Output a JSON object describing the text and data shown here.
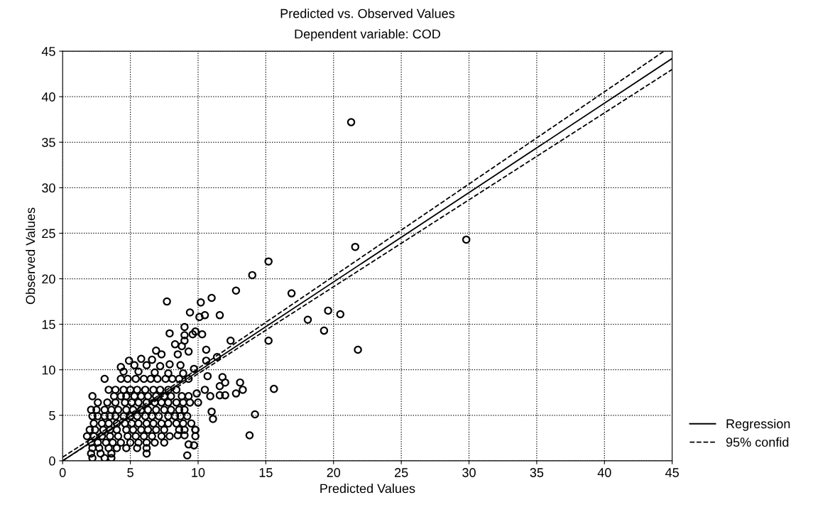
{
  "chart_data": {
    "type": "scatter",
    "title": "Predicted vs. Observed Values",
    "subtitle": "Dependent variable: COD",
    "xlabel": "Predicted Values",
    "ylabel": "Observed Values",
    "xlim": [
      0,
      45
    ],
    "ylim": [
      0,
      45
    ],
    "xticks": [
      0,
      5,
      10,
      15,
      20,
      25,
      30,
      35,
      40,
      45
    ],
    "yticks": [
      0,
      5,
      10,
      15,
      20,
      25,
      30,
      35,
      40,
      45
    ],
    "grid": true,
    "legend": "bottom right",
    "series": [
      {
        "color": "#000000",
        "marker": "circle",
        "x": [
          3.1,
          4.3,
          4.8,
          5.4,
          6.0,
          6.5,
          7.0,
          7.6,
          8.1,
          8.6,
          9.3,
          3.4,
          3.9,
          4.5,
          5.0,
          5.5,
          6.1,
          6.7,
          7.2,
          7.8,
          8.4,
          2.2,
          3.8,
          4.3,
          4.7,
          5.3,
          5.8,
          6.3,
          6.9,
          7.5,
          8.0,
          8.8,
          9.3,
          9.9,
          2.6,
          3.3,
          3.9,
          4.6,
          5.1,
          5.6,
          6.2,
          6.8,
          7.3,
          7.8,
          8.4,
          8.9,
          9.4,
          10.0,
          2.1,
          2.5,
          3.1,
          3.6,
          4.1,
          4.7,
          5.2,
          5.8,
          6.3,
          6.9,
          7.5,
          8.0,
          8.6,
          9.0,
          2.2,
          2.6,
          3.1,
          3.5,
          3.9,
          4.5,
          5.0,
          5.5,
          6.1,
          6.6,
          7.1,
          7.8,
          8.3,
          8.7,
          9.2,
          2.3,
          2.9,
          3.4,
          4.0,
          4.6,
          5.1,
          5.6,
          6.2,
          6.7,
          7.3,
          7.8,
          8.4,
          8.9,
          9.5,
          2.0,
          2.4,
          3.0,
          3.5,
          4.0,
          4.7,
          5.2,
          5.8,
          6.3,
          6.9,
          7.5,
          8.6,
          9.0,
          9.8,
          1.8,
          2.3,
          2.9,
          3.5,
          4.1,
          4.8,
          5.4,
          6.0,
          6.6,
          7.3,
          7.9,
          8.5,
          9.0,
          9.8,
          2.1,
          2.6,
          3.2,
          3.7,
          4.3,
          5.0,
          5.6,
          6.2,
          6.8,
          7.5,
          9.3,
          9.7,
          2.2,
          2.7,
          3.4,
          4.0,
          4.7,
          5.5,
          6.2,
          2.1,
          2.8,
          3.6,
          6.2,
          9.2,
          2.2,
          3.1,
          3.6,
          7.7,
          9.4,
          9.0,
          9.0,
          9.0,
          7.9,
          9.6,
          8.3,
          8.8,
          6.9,
          7.3,
          8.5,
          9.3,
          5.8,
          6.6,
          4.9,
          4.3,
          5.3,
          6.2,
          7.2,
          7.9,
          8.7,
          9.7,
          4.5,
          5.6,
          6.8,
          7.8,
          8.9,
          15.2,
          14.0,
          12.8,
          16.9,
          11.0,
          10.2,
          10.5,
          10.1,
          11.6,
          19.6,
          20.5,
          18.1,
          19.3,
          9.8,
          10.3,
          15.2,
          12.4,
          10.6,
          21.8,
          10.6,
          11.4,
          10.7,
          11.8,
          12.0,
          11.6,
          13.1,
          13.3,
          12.8,
          10.5,
          10.9,
          11.6,
          12.0,
          15.6,
          11.0,
          11.1,
          14.2,
          13.8,
          9.8,
          21.3,
          21.6,
          29.8
        ],
        "values": [
          9.0,
          9.0,
          9.0,
          9.0,
          9.0,
          9.0,
          9.0,
          9.0,
          9.0,
          9.0,
          9.0,
          7.8,
          7.8,
          7.8,
          7.8,
          7.8,
          7.8,
          7.8,
          7.8,
          7.8,
          7.8,
          7.1,
          7.1,
          7.1,
          7.1,
          7.1,
          7.1,
          7.1,
          7.1,
          7.1,
          7.1,
          7.1,
          7.1,
          7.4,
          6.4,
          6.4,
          6.4,
          6.4,
          6.4,
          6.4,
          6.4,
          6.4,
          6.4,
          6.4,
          6.4,
          6.4,
          6.4,
          6.4,
          5.6,
          5.6,
          5.6,
          5.6,
          5.6,
          5.6,
          5.6,
          5.6,
          5.6,
          5.6,
          5.6,
          5.6,
          5.6,
          5.6,
          4.9,
          4.9,
          4.9,
          4.9,
          4.9,
          4.9,
          4.9,
          4.9,
          4.9,
          4.9,
          4.9,
          4.9,
          4.9,
          4.9,
          4.9,
          4.1,
          4.1,
          4.1,
          4.1,
          4.1,
          4.1,
          4.1,
          4.1,
          4.1,
          4.1,
          4.1,
          4.1,
          4.1,
          4.1,
          3.4,
          3.4,
          3.4,
          3.4,
          3.4,
          3.4,
          3.4,
          3.4,
          3.4,
          3.4,
          3.4,
          3.4,
          3.4,
          3.4,
          2.7,
          2.7,
          2.7,
          2.7,
          2.7,
          2.7,
          2.7,
          2.7,
          2.7,
          2.7,
          2.7,
          2.8,
          2.8,
          2.7,
          2.0,
          2.0,
          2.0,
          2.0,
          2.0,
          2.0,
          2.0,
          2.0,
          2.0,
          2.0,
          1.8,
          1.7,
          1.4,
          1.4,
          1.4,
          1.4,
          1.4,
          1.4,
          1.4,
          0.8,
          0.8,
          0.8,
          0.8,
          0.6,
          0.3,
          0.3,
          0.3,
          17.5,
          16.3,
          14.7,
          13.8,
          13.2,
          14.0,
          13.9,
          12.8,
          12.6,
          12.1,
          11.7,
          11.7,
          12.0,
          11.2,
          11.1,
          11.0,
          10.3,
          10.5,
          10.5,
          10.4,
          10.6,
          10.5,
          10.1,
          9.8,
          9.8,
          9.7,
          9.6,
          9.6,
          21.9,
          20.4,
          18.7,
          18.4,
          17.9,
          17.4,
          16.0,
          15.8,
          16.0,
          16.5,
          16.1,
          15.5,
          14.3,
          14.2,
          13.9,
          13.2,
          13.2,
          12.2,
          12.2,
          11.0,
          11.4,
          9.3,
          9.2,
          8.6,
          8.2,
          8.6,
          7.8,
          7.4,
          7.8,
          7.1,
          7.2,
          7.2,
          7.9,
          5.4,
          4.6,
          5.1,
          2.8,
          3.4,
          37.2,
          23.5,
          24.3
        ]
      },
      {
        "type": "line",
        "name": "Regression",
        "color": "#000000",
        "line_style": "solid",
        "marker": "none",
        "x": [
          0,
          45
        ],
        "values": [
          0,
          44.2
        ]
      },
      {
        "type": "line",
        "name": "95% confid",
        "color": "#000000",
        "line_style": "dashed",
        "marker": "none",
        "x": [
          0,
          7,
          44.4
        ],
        "values": [
          0.4,
          7.1,
          45
        ]
      },
      {
        "type": "line",
        "color": "#000000",
        "line_style": "dashed",
        "marker": "none",
        "x": [
          0,
          7,
          45
        ],
        "values": [
          0,
          6.7,
          43.0
        ]
      }
    ]
  }
}
